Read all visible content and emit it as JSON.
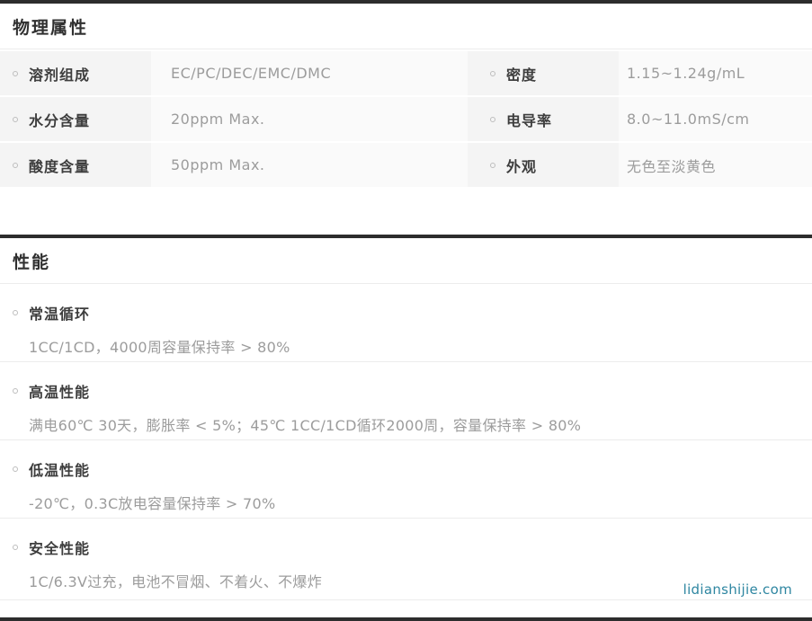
{
  "physical": {
    "title": "物理属性",
    "rows": [
      {
        "left": {
          "label": "溶剂组成",
          "value": "EC/PC/DEC/EMC/DMC"
        },
        "right": {
          "label": "密度",
          "value": "1.15~1.24g/mL"
        }
      },
      {
        "left": {
          "label": "水分含量",
          "value": "20ppm Max."
        },
        "right": {
          "label": "电导率",
          "value": "8.0~11.0mS/cm"
        }
      },
      {
        "left": {
          "label": "酸度含量",
          "value": "50ppm Max."
        },
        "right": {
          "label": "外观",
          "value": "无色至淡黄色"
        }
      }
    ]
  },
  "performance": {
    "title": "性能",
    "items": [
      {
        "label": "常温循环",
        "desc": "1CC/1CD，4000周容量保持率 > 80%"
      },
      {
        "label": "高温性能",
        "desc": "满电60℃ 30天，膨胀率 < 5%；45℃ 1CC/1CD循环2000周，容量保持率 > 80%"
      },
      {
        "label": "低温性能",
        "desc": "-20℃，0.3C放电容量保持率 > 70%"
      },
      {
        "label": "安全性能",
        "desc": "1C/6.3V过充，电池不冒烟、不着火、不爆炸"
      }
    ]
  },
  "watermark": "lidianshijie.com",
  "colors": {
    "top_bar": "#2d2d2d",
    "label_cell_bg": "#f4f4f4",
    "value_cell_bg": "#fafafa",
    "label_text": "#3d3d3d",
    "value_text": "#9c9c9c",
    "watermark_text": "#2e86a1",
    "divider": "#ececec"
  }
}
